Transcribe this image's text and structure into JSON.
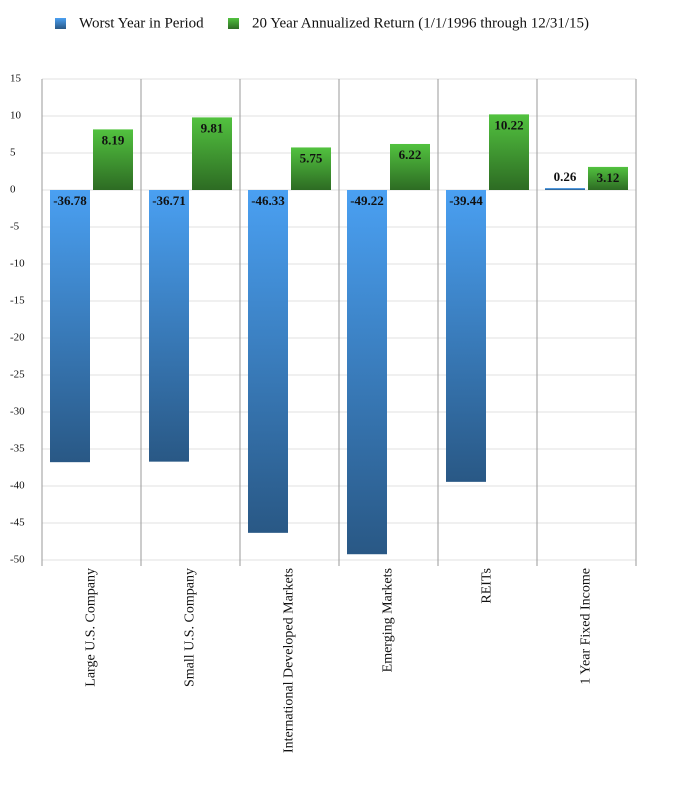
{
  "chart_data": {
    "type": "bar",
    "categories": [
      "Large U.S. Company",
      "Small U.S. Company",
      "International Developed Markets",
      "Emerging Markets",
      "REITs",
      "1 Year Fixed Income"
    ],
    "series": [
      {
        "name": "Worst Year in Period",
        "color": "#4aa0f2",
        "values": [
          -36.78,
          -36.71,
          -46.33,
          -49.22,
          -39.44,
          0.26
        ]
      },
      {
        "name": "20 Year Annualized Return (1/1/1996 through 12/31/15)",
        "color": "#52c23f",
        "values": [
          8.19,
          9.81,
          5.75,
          6.22,
          10.22,
          3.12
        ]
      }
    ],
    "ylim": [
      -50,
      15
    ],
    "yticks": [
      -50,
      -45,
      -40,
      -35,
      -30,
      -25,
      -20,
      -15,
      -10,
      -5,
      0,
      5,
      10,
      15
    ],
    "grid": true
  }
}
